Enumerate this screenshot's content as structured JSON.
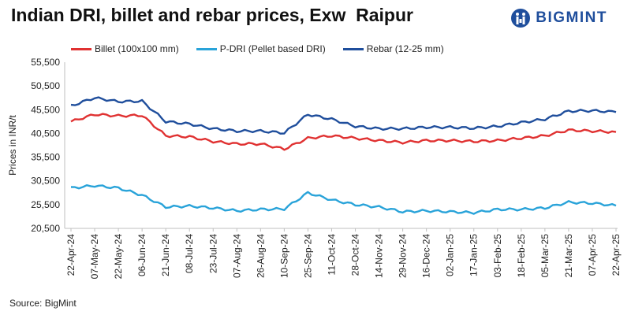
{
  "title": "Indian DRI, billet and rebar prices, Exw  Raipur",
  "logo": {
    "text": "BIGMINT"
  },
  "source": "Source: BigMint",
  "chart_data": {
    "type": "line",
    "ylabel": "Prices in INR/t",
    "xlabel": "",
    "ylim": [
      20500,
      55500
    ],
    "yticks": [
      "20,500",
      "25,500",
      "30,500",
      "35,500",
      "40,500",
      "45,500",
      "50,500",
      "55,500"
    ],
    "ytick_values": [
      20500,
      25500,
      30500,
      35500,
      40500,
      45500,
      50500,
      55500
    ],
    "x": [
      "22-Apr-24",
      "07-May-24",
      "22-May-24",
      "06-Jun-24",
      "21-Jun-24",
      "08-Jul-24",
      "23-Jul-24",
      "07-Aug-24",
      "26-Aug-24",
      "10-Sep-24",
      "25-Sep-24",
      "11-Oct-24",
      "28-Oct-24",
      "14-Nov-24",
      "29-Nov-24",
      "16-Dec-24",
      "02-Jan-25",
      "17-Jan-25",
      "03-Feb-25",
      "18-Feb-25",
      "05-Mar-25",
      "21-Mar-25",
      "07-Apr-25",
      "22-Apr-25"
    ],
    "series": [
      {
        "name": "Billet (100x100 mm)",
        "color": "#e03131",
        "values": [
          43000,
          44500,
          44200,
          44300,
          40000,
          39800,
          38800,
          38300,
          38300,
          37200,
          39500,
          40000,
          39500,
          39000,
          38600,
          39000,
          39000,
          38800,
          39000,
          39500,
          40000,
          41200,
          41000,
          40800
        ]
      },
      {
        "name": "P-DRI (Pellet based DRI)",
        "color": "#29a3d9",
        "values": [
          29000,
          29500,
          29000,
          27500,
          25000,
          25200,
          24800,
          24200,
          24500,
          24600,
          28000,
          26500,
          25500,
          25000,
          24000,
          24200,
          24000,
          23800,
          24500,
          24500,
          24800,
          26000,
          25800,
          25300
        ]
      },
      {
        "name": "Rebar (12-25 mm)",
        "color": "#1f4e9c",
        "values": [
          46300,
          48000,
          47200,
          47300,
          43000,
          42500,
          41500,
          41000,
          41000,
          40600,
          44500,
          43500,
          42000,
          41500,
          41500,
          41800,
          41800,
          41600,
          42000,
          42800,
          43500,
          45200,
          45300,
          45000
        ]
      }
    ]
  }
}
